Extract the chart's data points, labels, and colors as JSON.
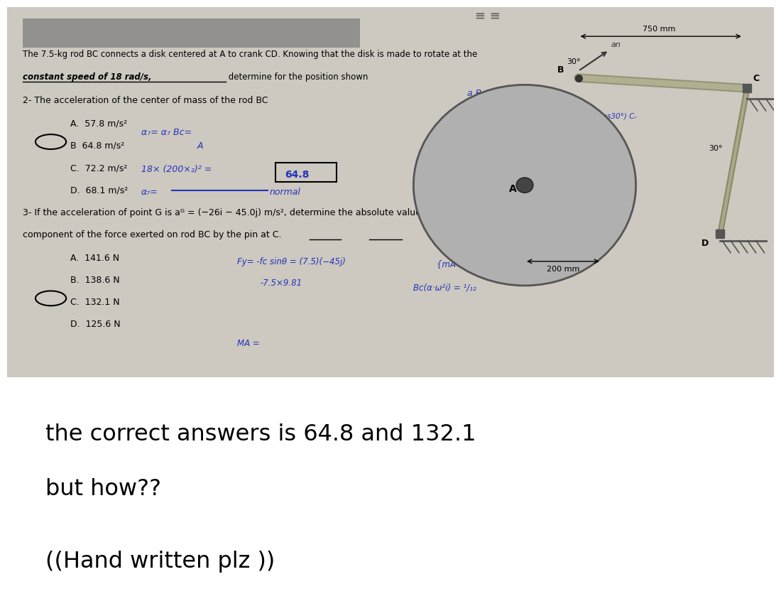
{
  "bg_color_top": "#cdc8c0",
  "bg_color_bottom": "#ffffff",
  "title_line1": "The 7.5-kg rod BC connects a disk centered at A to crank CD. Knowing that the disk is made to rotate at the",
  "title_line2_bold": "constant speed of 18 rad/s,",
  "title_line2_normal": " determine for the position shown",
  "q2_label": "2- The acceleration of the center of mass of the rod BC",
  "q2_options": [
    "A.  57.8 m/s²",
    "B  64.8 m/s²",
    "C.  72.2 m/s²",
    "D.  68.1 m/s²"
  ],
  "q2_correct": 1,
  "q3_label": "3- If the acceleration of point G is aᴳ = (−26i − 45.0j) m/s², determine the absolute value of the vertical",
  "q3_label2": "component of the force exerted on rod BC by the pin at C.",
  "q3_options": [
    "A.  141.6 N",
    "B.  138.6 N",
    "C.  132.1 N",
    "D.  125.6 N"
  ],
  "q3_correct": 2,
  "bottom_text1": "the correct answers is 64.8 and 132.1",
  "bottom_text2": "but how??",
  "bottom_text3": "((Hand written plz ))"
}
